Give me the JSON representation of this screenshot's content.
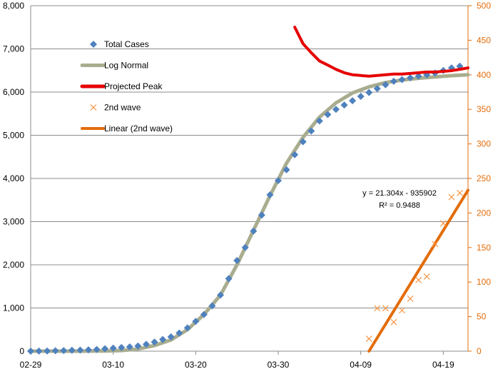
{
  "chart_data": {
    "type": "scatter",
    "x_axis": {
      "type": "date",
      "range": [
        "2020-02-29",
        "2020-04-22"
      ],
      "tick_labels": [
        "02-29",
        "03-10",
        "03-20",
        "03-30",
        "04-09",
        "04-19"
      ],
      "tick_dates": [
        "2020-02-29",
        "2020-03-10",
        "2020-03-20",
        "2020-03-30",
        "2020-04-09",
        "2020-04-19"
      ]
    },
    "y_left": {
      "range": [
        0,
        8000
      ],
      "tick_labels": [
        "0",
        "1,000",
        "2,000",
        "3,000",
        "4,000",
        "5,000",
        "6,000",
        "7,000",
        "8,000"
      ],
      "tick_values": [
        0,
        1000,
        2000,
        3000,
        4000,
        5000,
        6000,
        7000,
        8000
      ],
      "color": "#000000"
    },
    "y_right": {
      "range": [
        0,
        500
      ],
      "tick_labels": [
        "0",
        "50",
        "100",
        "150",
        "200",
        "250",
        "300",
        "350",
        "400",
        "450",
        "500"
      ],
      "tick_values": [
        0,
        50,
        100,
        150,
        200,
        250,
        300,
        350,
        400,
        450,
        500
      ],
      "color": "#e36c09"
    },
    "grid": "horizontal",
    "legend_position": "top-left",
    "series": [
      {
        "name": "Total Cases",
        "kind": "markers-diamond",
        "axis": "left",
        "color": "#4f81bd",
        "x": [
          "2020-02-29",
          "2020-03-01",
          "2020-03-02",
          "2020-03-03",
          "2020-03-04",
          "2020-03-05",
          "2020-03-06",
          "2020-03-07",
          "2020-03-08",
          "2020-03-09",
          "2020-03-10",
          "2020-03-11",
          "2020-03-12",
          "2020-03-13",
          "2020-03-14",
          "2020-03-15",
          "2020-03-16",
          "2020-03-17",
          "2020-03-18",
          "2020-03-19",
          "2020-03-20",
          "2020-03-21",
          "2020-03-22",
          "2020-03-23",
          "2020-03-24",
          "2020-03-25",
          "2020-03-26",
          "2020-03-27",
          "2020-03-28",
          "2020-03-29",
          "2020-03-30",
          "2020-03-31",
          "2020-04-01",
          "2020-04-02",
          "2020-04-03",
          "2020-04-04",
          "2020-04-05",
          "2020-04-06",
          "2020-04-07",
          "2020-04-08",
          "2020-04-09",
          "2020-04-10",
          "2020-04-11",
          "2020-04-12",
          "2020-04-13",
          "2020-04-14",
          "2020-04-15",
          "2020-04-16",
          "2020-04-17",
          "2020-04-18",
          "2020-04-19",
          "2020-04-20",
          "2020-04-21"
        ],
        "y": [
          0,
          2,
          5,
          10,
          15,
          20,
          25,
          32,
          40,
          55,
          70,
          85,
          100,
          120,
          160,
          210,
          270,
          330,
          420,
          540,
          690,
          850,
          1050,
          1300,
          1680,
          2100,
          2400,
          2780,
          3150,
          3620,
          3950,
          4200,
          4550,
          4850,
          5100,
          5330,
          5480,
          5600,
          5700,
          5800,
          5900,
          5990,
          6080,
          6170,
          6250,
          6290,
          6330,
          6370,
          6400,
          6440,
          6500,
          6560,
          6600
        ]
      },
      {
        "name": "Log Normal",
        "kind": "line",
        "axis": "left",
        "color": "#a9ad8f",
        "x": [
          "2020-02-29",
          "2020-03-03",
          "2020-03-06",
          "2020-03-09",
          "2020-03-11",
          "2020-03-13",
          "2020-03-15",
          "2020-03-17",
          "2020-03-19",
          "2020-03-21",
          "2020-03-23",
          "2020-03-25",
          "2020-03-27",
          "2020-03-29",
          "2020-03-31",
          "2020-04-02",
          "2020-04-04",
          "2020-04-06",
          "2020-04-08",
          "2020-04-10",
          "2020-04-12",
          "2020-04-14",
          "2020-04-16",
          "2020-04-18",
          "2020-04-20",
          "2020-04-22"
        ],
        "y": [
          0,
          0,
          0,
          5,
          15,
          50,
          130,
          260,
          500,
          850,
          1300,
          2000,
          2800,
          3600,
          4350,
          4950,
          5420,
          5750,
          5980,
          6120,
          6220,
          6280,
          6320,
          6350,
          6380,
          6400
        ]
      },
      {
        "name": "Projected Peak",
        "kind": "line",
        "axis": "right",
        "color": "#e60000",
        "x": [
          "2020-04-01",
          "2020-04-02",
          "2020-04-03",
          "2020-04-04",
          "2020-04-05",
          "2020-04-06",
          "2020-04-07",
          "2020-04-08",
          "2020-04-09",
          "2020-04-10",
          "2020-04-11",
          "2020-04-12",
          "2020-04-13",
          "2020-04-14",
          "2020-04-15",
          "2020-04-16",
          "2020-04-17",
          "2020-04-18",
          "2020-04-19",
          "2020-04-20",
          "2020-04-21",
          "2020-04-22"
        ],
        "y": [
          469,
          445,
          432,
          420,
          414,
          408,
          403,
          400,
          399,
          398,
          399,
          400,
          401,
          401,
          402,
          403,
          404,
          404,
          405,
          406,
          408,
          410
        ]
      },
      {
        "name": "2nd wave",
        "kind": "markers-x",
        "axis": "right",
        "color": "#f79646",
        "x": [
          "2020-04-10",
          "2020-04-11",
          "2020-04-12",
          "2020-04-13",
          "2020-04-14",
          "2020-04-15",
          "2020-04-16",
          "2020-04-17",
          "2020-04-18",
          "2020-04-19",
          "2020-04-20",
          "2020-04-21"
        ],
        "y": [
          18,
          62,
          62,
          42,
          59,
          76,
          103,
          108,
          155,
          185,
          223,
          229
        ]
      },
      {
        "name": "Linear (2nd wave)",
        "kind": "trendline",
        "axis": "right",
        "color": "#e36c09",
        "x": [
          "2020-04-10",
          "2020-04-22"
        ],
        "y": [
          0,
          233
        ]
      }
    ],
    "annotations": [
      "y = 21.304x - 935902",
      "R² = 0.9488"
    ]
  }
}
